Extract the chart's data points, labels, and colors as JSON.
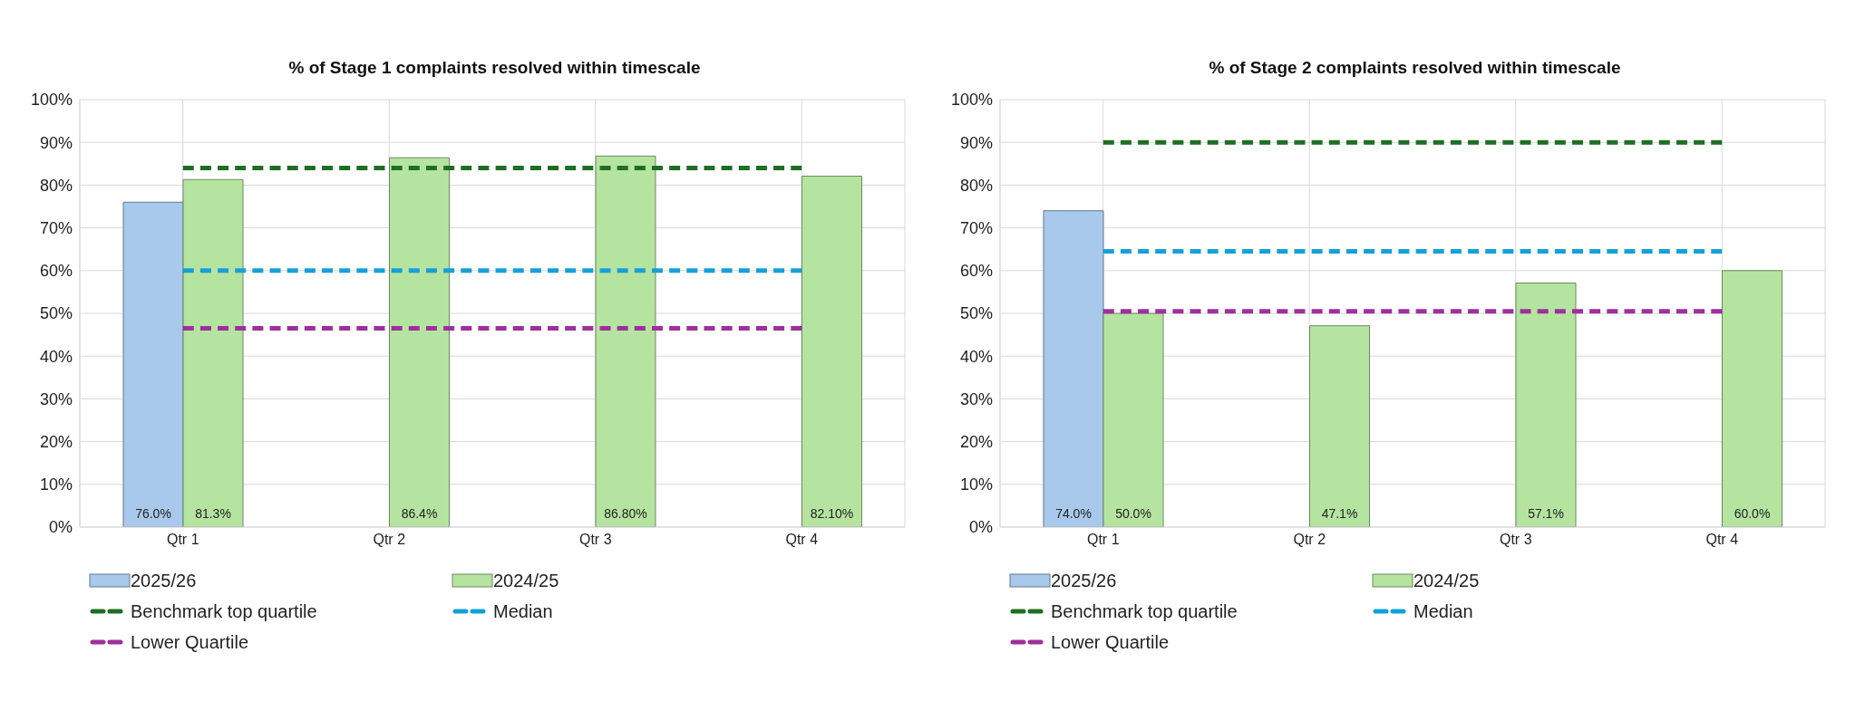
{
  "chart_data": [
    {
      "type": "bar",
      "title": "% of Stage 1 complaints resolved within timescale",
      "categories": [
        "Qtr 1",
        "Qtr 2",
        "Qtr 3",
        "Qtr 4"
      ],
      "series": [
        {
          "name": "2025/26",
          "color": "#a9c9ec",
          "values": [
            76.0,
            null,
            null,
            null
          ],
          "value_labels": [
            "76.0%",
            null,
            null,
            null
          ]
        },
        {
          "name": "2024/25",
          "color": "#b5e4a0",
          "values": [
            81.3,
            86.4,
            86.8,
            82.1
          ],
          "value_labels": [
            "81.3%",
            "86.4%",
            "86.80%",
            "82.10%"
          ]
        },
        {
          "name": "Benchmark top quartile",
          "type": "line",
          "color": "#1e6e23",
          "values": [
            84,
            84,
            84,
            84
          ],
          "line_style": "dashed"
        },
        {
          "name": "Median",
          "type": "line",
          "color": "#16a0d8",
          "values": [
            60,
            60,
            60,
            60
          ],
          "line_style": "dashed"
        },
        {
          "name": "Lower Quartile",
          "type": "line",
          "color": "#9e2f9e",
          "values": [
            46.5,
            46.5,
            46.5,
            46.5
          ],
          "line_style": "dashed"
        }
      ],
      "ylim": [
        0,
        100
      ],
      "yticks": [
        {
          "value": 0,
          "label": "0%"
        },
        {
          "value": 10,
          "label": "10%"
        },
        {
          "value": 20,
          "label": "20%"
        },
        {
          "value": 30,
          "label": "30%"
        },
        {
          "value": 40,
          "label": "40%"
        },
        {
          "value": 50,
          "label": "50%"
        },
        {
          "value": 60,
          "label": "60%"
        },
        {
          "value": 70,
          "label": "70%"
        },
        {
          "value": 80,
          "label": "80%"
        },
        {
          "value": 90,
          "label": "90%"
        },
        {
          "value": 100,
          "label": "100%"
        }
      ],
      "grid": true,
      "legend": "bottom",
      "marker": "none"
    },
    {
      "type": "bar",
      "title": "% of Stage 2 complaints resolved within timescale",
      "categories": [
        "Qtr 1",
        "Qtr 2",
        "Qtr 3",
        "Qtr 4"
      ],
      "series": [
        {
          "name": "2025/26",
          "color": "#a9c9ec",
          "values": [
            74.0,
            null,
            null,
            null
          ],
          "value_labels": [
            "74.0%",
            null,
            null,
            null
          ]
        },
        {
          "name": "2024/25",
          "color": "#b5e4a0",
          "values": [
            50.0,
            47.1,
            57.1,
            60.0
          ],
          "value_labels": [
            "50.0%",
            "47.1%",
            "57.1%",
            "60.0%"
          ]
        },
        {
          "name": "Benchmark top quartile",
          "type": "line",
          "color": "#1e6e23",
          "values": [
            90,
            90,
            90,
            90
          ],
          "line_style": "dashed"
        },
        {
          "name": "Median",
          "type": "line",
          "color": "#16a0d8",
          "values": [
            64.5,
            64.5,
            64.5,
            64.5
          ],
          "line_style": "dashed"
        },
        {
          "name": "Lower Quartile",
          "type": "line",
          "color": "#9e2f9e",
          "values": [
            50.5,
            50.5,
            50.5,
            50.5
          ],
          "line_style": "dashed"
        }
      ],
      "ylim": [
        0,
        100
      ],
      "yticks": [
        {
          "value": 0,
          "label": "0%"
        },
        {
          "value": 10,
          "label": "10%"
        },
        {
          "value": 20,
          "label": "20%"
        },
        {
          "value": 30,
          "label": "30%"
        },
        {
          "value": 40,
          "label": "40%"
        },
        {
          "value": 50,
          "label": "50%"
        },
        {
          "value": 60,
          "label": "60%"
        },
        {
          "value": 70,
          "label": "70%"
        },
        {
          "value": 80,
          "label": "80%"
        },
        {
          "value": 90,
          "label": "90%"
        },
        {
          "value": 100,
          "label": "100%"
        }
      ],
      "grid": true,
      "legend": "bottom",
      "marker": "none"
    }
  ]
}
